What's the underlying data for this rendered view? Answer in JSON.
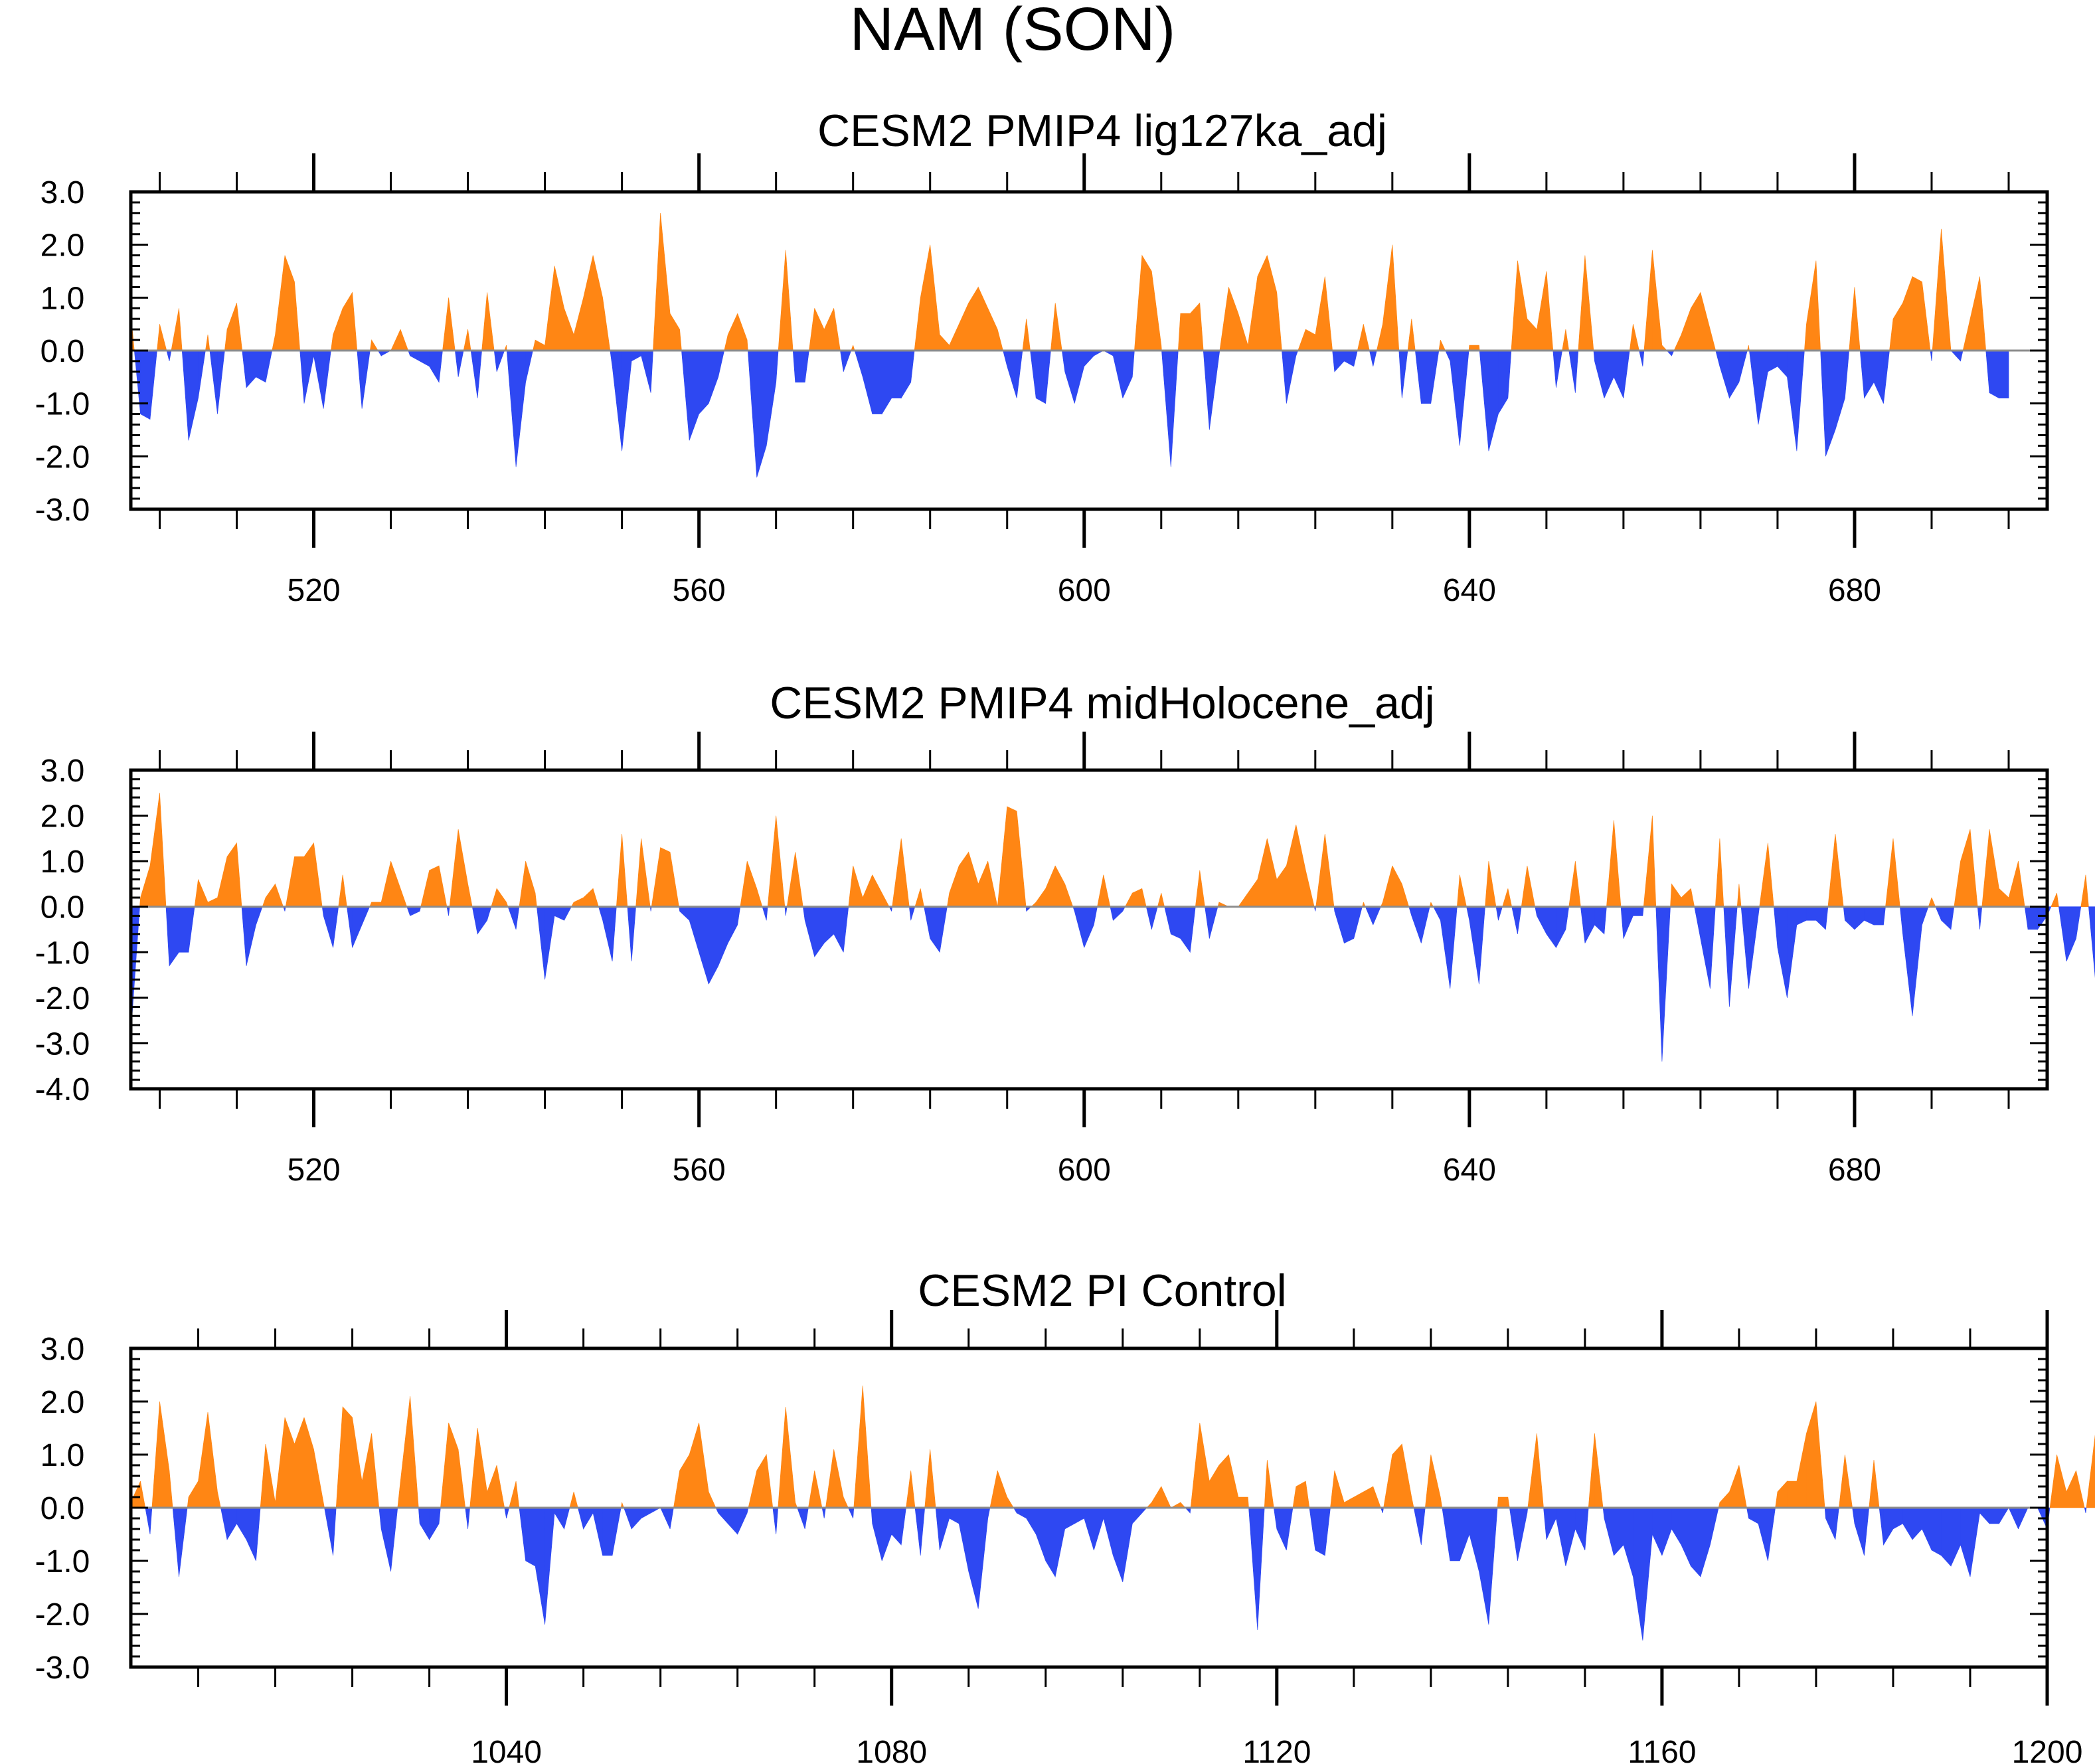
{
  "figure_title": "NAM (SON)",
  "colors": {
    "positive": "#ff8614",
    "negative": "#2e48f2",
    "baseline": "#8c8c8c",
    "axis": "#000000"
  },
  "chart_data": [
    {
      "type": "area",
      "title": "CESM2 PMIP4 lig127ka_adj",
      "xlim": [
        501,
        700
      ],
      "ylim": [
        -3,
        3
      ],
      "yticks": [
        3,
        2,
        1,
        0,
        -1,
        -2,
        -3
      ],
      "ytick_labels": [
        "3.0",
        "2.0",
        "1.0",
        "0.0",
        "-1.0",
        "-2.0",
        "-3.0"
      ],
      "xticks": [
        520,
        560,
        600,
        640,
        680
      ],
      "xtick_labels": [
        "520",
        "560",
        "600",
        "640",
        "680"
      ],
      "x_start": 501,
      "values": [
        0.7,
        -1.2,
        -1.3,
        0.5,
        -0.2,
        0.8,
        -1.7,
        -0.9,
        0.3,
        -1.2,
        0.4,
        0.9,
        -0.7,
        -0.5,
        -0.6,
        0.3,
        1.8,
        1.3,
        -1.0,
        -0.1,
        -1.1,
        0.3,
        0.8,
        1.1,
        -1.1,
        0.2,
        -0.1,
        0.0,
        0.4,
        -0.1,
        -0.2,
        -0.3,
        -0.6,
        1.0,
        -0.5,
        0.4,
        -0.9,
        1.1,
        -0.4,
        0.1,
        -2.2,
        -0.6,
        0.2,
        0.1,
        1.6,
        0.8,
        0.3,
        1.0,
        1.8,
        1.0,
        -0.3,
        -1.9,
        -0.2,
        -0.1,
        -0.8,
        2.6,
        0.7,
        0.4,
        -1.7,
        -1.2,
        -1.0,
        -0.5,
        0.3,
        0.7,
        0.2,
        -2.4,
        -1.8,
        -0.6,
        1.9,
        -0.6,
        -0.6,
        0.8,
        0.4,
        0.8,
        -0.4,
        0.1,
        -0.5,
        -1.2,
        -1.2,
        -0.9,
        -0.9,
        -0.6,
        1.0,
        2.0,
        0.3,
        0.1,
        0.5,
        0.9,
        1.2,
        0.8,
        0.4,
        -0.3,
        -0.9,
        0.6,
        -0.9,
        -1.0,
        0.9,
        -0.4,
        -1.0,
        -0.3,
        -0.1,
        0.0,
        -0.1,
        -0.9,
        -0.5,
        1.8,
        1.5,
        0.1,
        -2.2,
        0.7,
        0.7,
        0.9,
        -1.5,
        -0.1,
        1.2,
        0.7,
        0.1,
        1.4,
        1.8,
        1.1,
        -1.0,
        -0.1,
        0.4,
        0.3,
        1.4,
        -0.4,
        -0.2,
        -0.3,
        0.5,
        -0.3,
        0.5,
        2.0,
        -0.9,
        0.6,
        -1.0,
        -1.0,
        0.2,
        -0.2,
        -1.8,
        0.1,
        0.1,
        -1.9,
        -1.2,
        -0.9,
        1.7,
        0.6,
        0.4,
        1.5,
        -0.7,
        0.4,
        -0.8,
        1.8,
        -0.2,
        -0.9,
        -0.5,
        -0.9,
        0.5,
        -0.3,
        1.9,
        0.1,
        -0.1,
        0.3,
        0.8,
        1.1,
        0.4,
        -0.3,
        -0.9,
        -0.6,
        0.1,
        -1.4,
        -0.4,
        -0.3,
        -0.5,
        -1.9,
        0.5,
        1.7,
        -2.0,
        -1.5,
        -0.9,
        1.2,
        -0.9,
        -0.6,
        -1.0,
        0.6,
        0.9,
        1.4,
        1.3,
        -0.2,
        2.3,
        0.0,
        -0.2,
        0.6,
        1.4,
        -0.8,
        -0.9,
        -0.9
      ]
    },
    {
      "type": "area",
      "title": "CESM2 PMIP4 midHolocene_adj",
      "xlim": [
        501,
        700
      ],
      "ylim": [
        -4,
        3
      ],
      "yticks": [
        3,
        2,
        1,
        0,
        -1,
        -2,
        -3,
        -4
      ],
      "ytick_labels": [
        "3.0",
        "2.0",
        "1.0",
        "0.0",
        "-1.0",
        "-2.0",
        "-3.0",
        "-4.0"
      ],
      "xticks": [
        520,
        560,
        600,
        640,
        680
      ],
      "xtick_labels": [
        "520",
        "560",
        "600",
        "640",
        "680"
      ],
      "x_start": 501,
      "values": [
        -2.8,
        0.2,
        0.9,
        2.5,
        -1.3,
        -1.0,
        -1.0,
        0.6,
        0.1,
        0.2,
        1.1,
        1.4,
        -1.3,
        -0.4,
        0.2,
        0.5,
        -0.1,
        1.1,
        1.1,
        1.4,
        -0.2,
        -0.9,
        0.7,
        -0.9,
        -0.4,
        0.1,
        0.1,
        1.0,
        0.4,
        -0.2,
        -0.1,
        0.8,
        0.9,
        -0.2,
        1.7,
        0.5,
        -0.6,
        -0.3,
        0.4,
        0.1,
        -0.5,
        1.0,
        0.3,
        -1.6,
        -0.2,
        -0.3,
        0.1,
        0.2,
        0.4,
        -0.3,
        -1.2,
        1.6,
        -1.2,
        1.5,
        -0.1,
        1.3,
        1.2,
        -0.1,
        -0.3,
        -1.0,
        -1.7,
        -1.3,
        -0.8,
        -0.4,
        1.0,
        0.4,
        -0.3,
        2.0,
        -0.2,
        1.2,
        -0.3,
        -1.1,
        -0.8,
        -0.6,
        -1.0,
        0.9,
        0.2,
        0.7,
        0.3,
        -0.1,
        1.5,
        -0.3,
        0.4,
        -0.7,
        -1.0,
        0.3,
        0.9,
        1.2,
        0.5,
        1.0,
        0.0,
        2.2,
        2.1,
        -0.1,
        0.1,
        0.4,
        0.9,
        0.5,
        -0.1,
        -0.9,
        -0.4,
        0.7,
        -0.3,
        -0.1,
        0.3,
        0.4,
        -0.5,
        0.3,
        -0.6,
        -0.7,
        -1.0,
        0.8,
        -0.7,
        0.1,
        0.0,
        0.0,
        0.3,
        0.6,
        1.5,
        0.6,
        0.9,
        1.8,
        0.8,
        -0.1,
        1.6,
        -0.1,
        -0.8,
        -0.7,
        0.1,
        -0.4,
        0.1,
        0.9,
        0.5,
        -0.2,
        -0.8,
        0.1,
        -0.3,
        -1.8,
        0.7,
        -0.3,
        -1.7,
        1.0,
        -0.3,
        0.4,
        -0.6,
        0.9,
        -0.2,
        -0.6,
        -0.9,
        -0.5,
        1.0,
        -0.8,
        -0.4,
        -0.6,
        1.9,
        -0.7,
        -0.2,
        -0.2,
        2.0,
        -3.4,
        0.5,
        0.2,
        0.4,
        -0.7,
        -1.8,
        1.5,
        -2.2,
        0.5,
        -1.8,
        -0.2,
        1.4,
        -0.9,
        -2.0,
        -0.4,
        -0.3,
        -0.3,
        -0.5,
        1.6,
        -0.3,
        -0.5,
        -0.3,
        -0.4,
        -0.4,
        1.5,
        -0.6,
        -2.4,
        -0.4,
        0.2,
        -0.3,
        -0.5,
        1.0,
        1.7,
        -0.5,
        1.7,
        0.4,
        0.2,
        1.0,
        -0.5,
        -0.5,
        -0.2,
        0.3,
        -1.2,
        -0.7,
        0.7,
        -1.6
      ]
    },
    {
      "type": "area",
      "title": "CESM2 PI Control",
      "xlim": [
        1001,
        1200
      ],
      "ylim": [
        -3,
        3
      ],
      "yticks": [
        3,
        2,
        1,
        0,
        -1,
        -2,
        -3
      ],
      "ytick_labels": [
        "3.0",
        "2.0",
        "1.0",
        "0.0",
        "-1.0",
        "-2.0",
        "-3.0"
      ],
      "xticks": [
        1040,
        1080,
        1120,
        1160,
        1200
      ],
      "xtick_labels": [
        "1040",
        "1080",
        "1120",
        "1160",
        "1200"
      ],
      "x_start": 1001,
      "values": [
        0.1,
        0.5,
        -0.5,
        2.0,
        0.7,
        -1.3,
        0.2,
        0.5,
        1.8,
        0.3,
        -0.6,
        -0.3,
        -0.6,
        -1.0,
        1.2,
        0.1,
        1.7,
        1.2,
        1.7,
        1.1,
        0.1,
        -0.9,
        1.9,
        1.7,
        0.5,
        1.4,
        -0.4,
        -1.2,
        0.5,
        2.1,
        -0.3,
        -0.6,
        -0.3,
        1.6,
        1.1,
        -0.4,
        1.5,
        0.3,
        0.8,
        -0.2,
        0.5,
        -1.0,
        -1.1,
        -2.2,
        -0.1,
        -0.4,
        0.3,
        -0.4,
        -0.1,
        -0.9,
        -0.9,
        0.1,
        -0.4,
        -0.2,
        -0.1,
        0.0,
        -0.4,
        0.7,
        1.0,
        1.6,
        0.3,
        -0.1,
        -0.3,
        -0.5,
        -0.1,
        0.7,
        1.0,
        -0.5,
        1.9,
        0.1,
        -0.4,
        0.7,
        -0.2,
        1.1,
        0.2,
        -0.2,
        2.3,
        -0.3,
        -1.0,
        -0.5,
        -0.7,
        0.7,
        -0.9,
        1.1,
        -0.8,
        -0.2,
        -0.3,
        -1.2,
        -1.9,
        -0.2,
        0.7,
        0.2,
        -0.1,
        -0.2,
        -0.5,
        -1.0,
        -1.3,
        -0.4,
        -0.3,
        -0.2,
        -0.8,
        -0.2,
        -0.9,
        -1.4,
        -0.3,
        -0.1,
        0.1,
        0.4,
        0.0,
        0.1,
        -0.1,
        1.6,
        0.5,
        0.8,
        1.0,
        0.2,
        0.2,
        -2.3,
        0.9,
        -0.4,
        -0.8,
        0.4,
        0.5,
        -0.8,
        -0.9,
        0.7,
        0.1,
        0.2,
        0.3,
        0.4,
        -0.1,
        1.0,
        1.2,
        0.2,
        -0.7,
        1.0,
        0.2,
        -1.0,
        -1.0,
        -0.5,
        -1.2,
        -2.2,
        0.2,
        0.2,
        -1.0,
        -0.1,
        1.4,
        -0.6,
        -0.2,
        -1.1,
        -0.4,
        -0.8,
        1.4,
        -0.2,
        -0.9,
        -0.7,
        -1.3,
        -2.5,
        -0.5,
        -0.9,
        -0.4,
        -0.7,
        -1.1,
        -1.3,
        -0.7,
        0.1,
        0.3,
        0.8,
        -0.2,
        -0.3,
        -1.0,
        0.3,
        0.5,
        0.5,
        1.4,
        2.0,
        -0.2,
        -0.6,
        1.0,
        -0.3,
        -0.9,
        0.9,
        -0.7,
        -0.4,
        -0.3,
        -0.6,
        -0.4,
        -0.8,
        -0.9,
        -1.1,
        -0.7,
        -1.3,
        -0.1,
        -0.3,
        -0.3,
        0.0,
        -0.4,
        0.0,
        0.0,
        -0.4,
        1.0,
        0.3,
        0.7,
        -0.1,
        1.4,
        0.6
      ]
    }
  ]
}
